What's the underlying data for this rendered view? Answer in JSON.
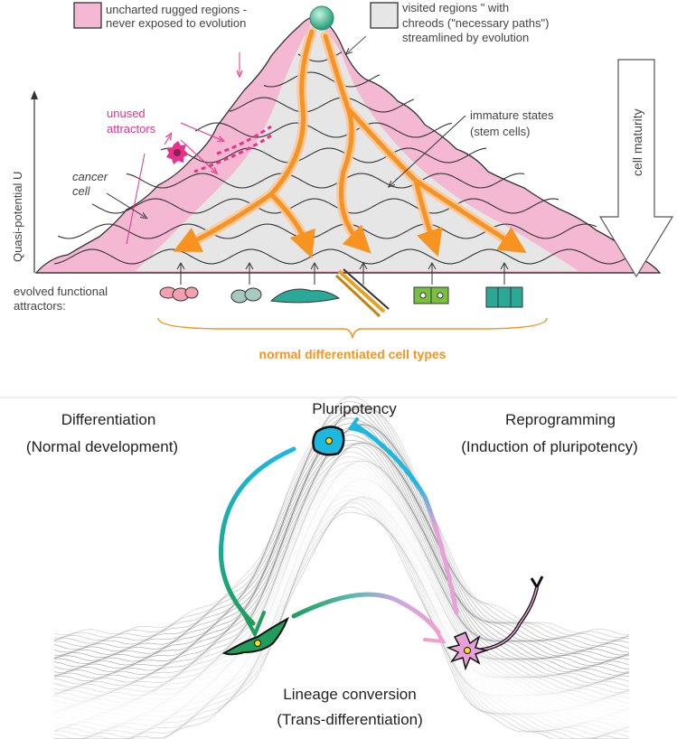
{
  "top_panel": {
    "legend_uncharted": [
      "uncharted rugged regions -",
      "never exposed to evolution"
    ],
    "legend_visited": [
      "visited regions \" with",
      "chreods  (\"necessary paths\")",
      "streamlined by evolution"
    ],
    "unused_attractors": [
      "unused",
      "attractors"
    ],
    "cancer_cell": [
      "cancer",
      "cell"
    ],
    "immature_states": [
      "immature states",
      "(stem cells)"
    ],
    "y_axis_label": "Quasi-potential U",
    "cell_maturity": "cell maturity",
    "evolved_attractors": [
      "evolved functional",
      "attractors:"
    ],
    "normal_types": "normal differentiated cell types",
    "colors": {
      "pink": "#f4b8d2",
      "gray": "#e6e6e6",
      "orange": "#f7931e",
      "magenta": "#e8318a"
    }
  },
  "bottom_panel": {
    "pluripotency": "Pluripotency",
    "differentiation": [
      "Differentiation",
      "(Normal development)"
    ],
    "reprogramming": [
      "Reprogramming",
      "(Induction of pluripotency)"
    ],
    "lineage_conversion": [
      "Lineage conversion",
      "(Trans-differentiation)"
    ],
    "colors": {
      "stem_cell": "#1cb8e0",
      "green_cell": "#1e9e5a",
      "neuron": "#e8a0d8"
    }
  }
}
